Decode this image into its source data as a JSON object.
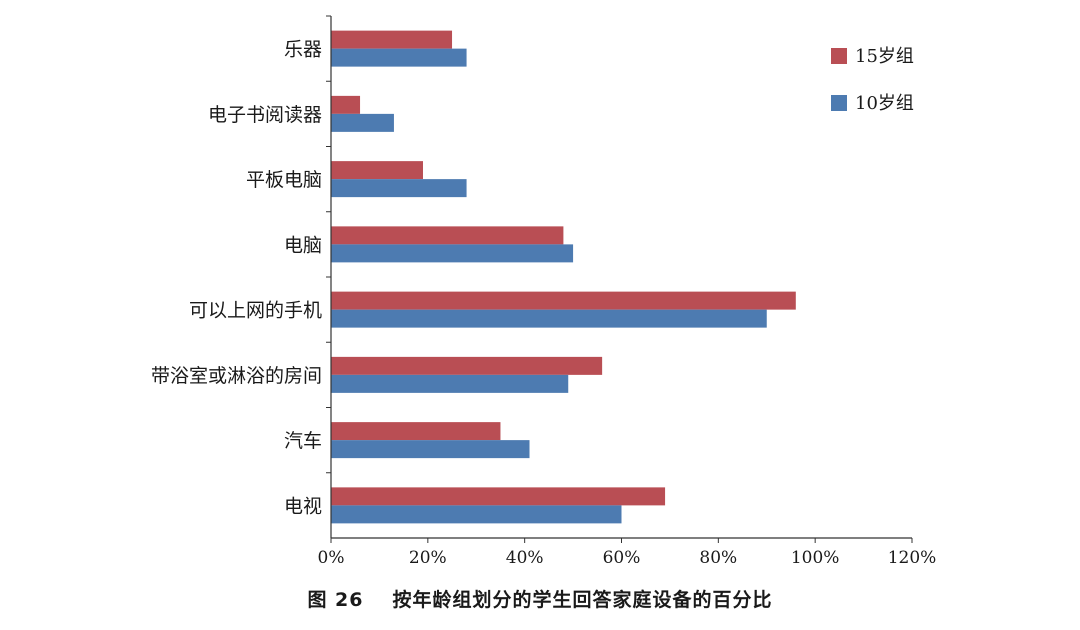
{
  "chart_data": {
    "type": "bar",
    "orientation": "horizontal",
    "categories": [
      "乐器",
      "电子书阅读器",
      "平板电脑",
      "电脑",
      "可以上网的手机",
      "带浴室或淋浴的房间",
      "汽车",
      "电视"
    ],
    "series": [
      {
        "name": "15岁组",
        "color": "#b94e54",
        "values": [
          25,
          6,
          19,
          48,
          96,
          56,
          35,
          69
        ]
      },
      {
        "name": "10岁组",
        "color": "#4d7bb1",
        "values": [
          28,
          13,
          28,
          50,
          90,
          49,
          41,
          60
        ]
      }
    ],
    "xlim": [
      0,
      120
    ],
    "xticks": [
      0,
      20,
      40,
      60,
      80,
      100,
      120
    ],
    "xtick_labels": [
      "0%",
      "20%",
      "40%",
      "60%",
      "80%",
      "100%",
      "120%"
    ],
    "xlabel": "",
    "ylabel": "",
    "grid": false,
    "legend_position": "top-right"
  },
  "caption": {
    "number": "图 26",
    "title": "按年龄组划分的学生回答家庭设备的百分比"
  }
}
